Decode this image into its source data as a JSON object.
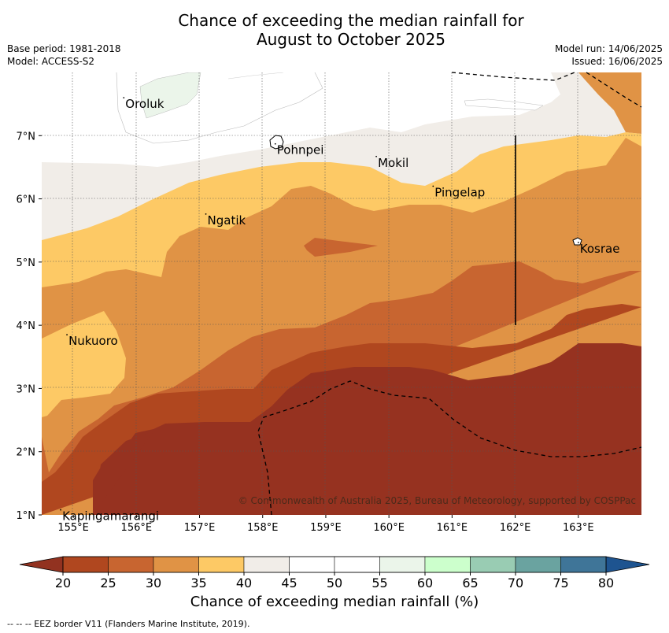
{
  "title_line1": "Chance of exceeding the median rainfall for",
  "title_line2": "August to October 2025",
  "base_period": "Base period: 1981-2018",
  "model": "Model: ACCESS-S2",
  "model_run": "Model run: 14/06/2025",
  "issued": "Issued: 16/06/2025",
  "copyright": "© Commonwealth of Australia 2025, Bureau of Meteorology, supported by COSPPac",
  "colorbar_label": "Chance of exceeding median rainfall (%)",
  "footnote": "-- -- -- EEZ border V11 (Flanders Marine Institute, 2019).",
  "lon_ticks": [
    "155°E",
    "156°E",
    "157°E",
    "158°E",
    "159°E",
    "160°E",
    "161°E",
    "162°E",
    "163°E"
  ],
  "lat_ticks": [
    "7°N",
    "6°N",
    "5°N",
    "4°N",
    "3°N",
    "2°N",
    "1°N"
  ],
  "places": [
    {
      "name": "Oroluk",
      "lon": 155.8,
      "lat": 7.6
    },
    {
      "name": "Pohnpei",
      "lon": 158.2,
      "lat": 6.87
    },
    {
      "name": "Ngatik",
      "lon": 157.1,
      "lat": 5.76
    },
    {
      "name": "Mokil",
      "lon": 159.8,
      "lat": 6.67
    },
    {
      "name": "Pingelap",
      "lon": 160.7,
      "lat": 6.2
    },
    {
      "name": "Kosrae",
      "lon": 163.0,
      "lat": 5.31
    },
    {
      "name": "Nukuoro",
      "lon": 154.9,
      "lat": 3.85
    },
    {
      "name": "Kapingamarangi",
      "lon": 154.8,
      "lat": 1.08
    }
  ],
  "colorbar": {
    "ticks": [
      20,
      25,
      30,
      35,
      40,
      45,
      50,
      55,
      60,
      65,
      70,
      75,
      80
    ],
    "colors": [
      "#b0471f",
      "#c86530",
      "#e09345",
      "#fdc965",
      "#f1ede8",
      "#ffffff",
      "#ffffff",
      "#ebf5ea",
      "#ccffcc",
      "#99ccb3",
      "#6aa3a0",
      "#3f7598",
      "#1e5490"
    ],
    "under_color": "#923220",
    "over_color": "#1e5490"
  },
  "palette": {
    "p20": "#963220",
    "p25": "#b0471f",
    "p30": "#c86530",
    "p35": "#e09345",
    "p40": "#fdc965",
    "p45": "#f1ede8",
    "p50": "#ffffff",
    "p55": "#ebf5ea"
  }
}
